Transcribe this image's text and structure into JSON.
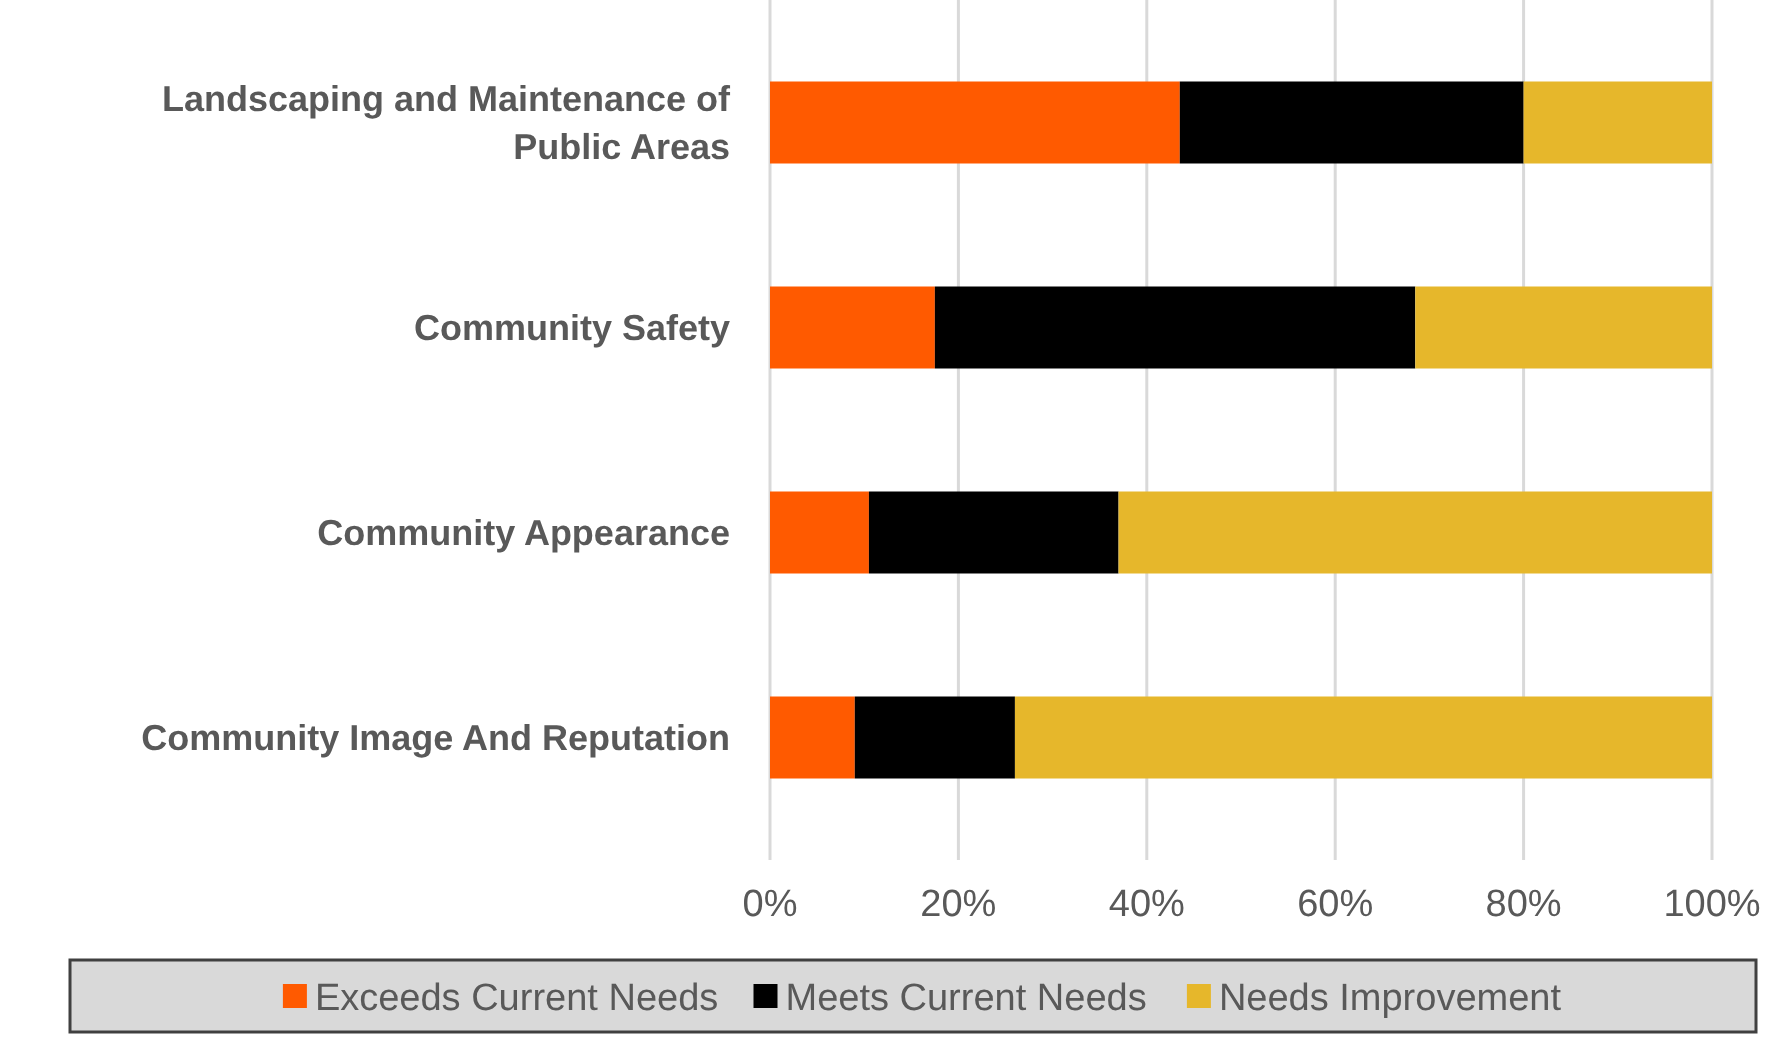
{
  "chart_data": {
    "type": "bar",
    "orientation": "horizontal",
    "stacked": true,
    "categories": [
      "Landscaping and Maintenance of Public Areas",
      "Community Safety",
      "Community Appearance",
      "Community Image And Reputation"
    ],
    "series": [
      {
        "name": "Exceeds Current Needs",
        "color": "#ff5a00",
        "values": [
          43.5,
          17.5,
          10.5,
          9
        ]
      },
      {
        "name": "Meets Current Needs",
        "color": "#000000",
        "values": [
          36.5,
          51,
          26.5,
          17
        ]
      },
      {
        "name": "Needs Improvement",
        "color": "#e6b72b",
        "values": [
          20,
          31.5,
          63,
          74
        ]
      }
    ],
    "xlim": [
      0,
      100
    ],
    "xticks": [
      {
        "value": 0,
        "label": "0%"
      },
      {
        "value": 20,
        "label": "20%"
      },
      {
        "value": 40,
        "label": "40%"
      },
      {
        "value": 60,
        "label": "60%"
      },
      {
        "value": 80,
        "label": "80%"
      },
      {
        "value": 100,
        "label": "100%"
      }
    ],
    "grid": "x",
    "legend": "bottom"
  }
}
